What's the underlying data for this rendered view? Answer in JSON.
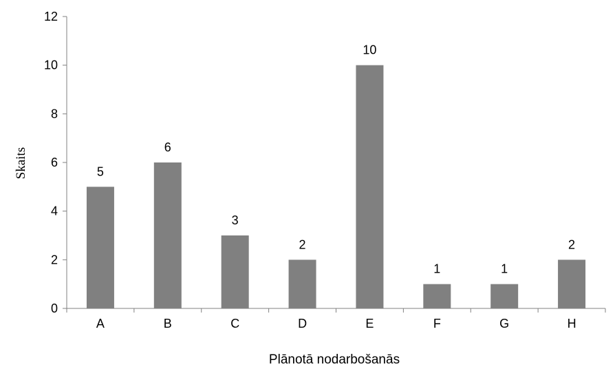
{
  "chart_data": {
    "type": "bar",
    "title": "",
    "xlabel": "Plānotā nodarbošanās",
    "ylabel": "Skaits",
    "categories": [
      "A",
      "B",
      "C",
      "D",
      "E",
      "F",
      "G",
      "H"
    ],
    "values": [
      5,
      6,
      3,
      2,
      10,
      1,
      1,
      2
    ],
    "ylim": [
      0,
      12
    ],
    "yticks": [
      0,
      2,
      4,
      6,
      8,
      10,
      12
    ],
    "ytick_labels": [
      "0",
      "2",
      "4",
      "6",
      "8",
      "10",
      "12"
    ],
    "data_labels": [
      "5",
      "6",
      "3",
      "2",
      "10",
      "1",
      "1",
      "2"
    ],
    "grid": false,
    "legend": "none",
    "bar_color": "#808080",
    "axis_color": "#808080"
  }
}
